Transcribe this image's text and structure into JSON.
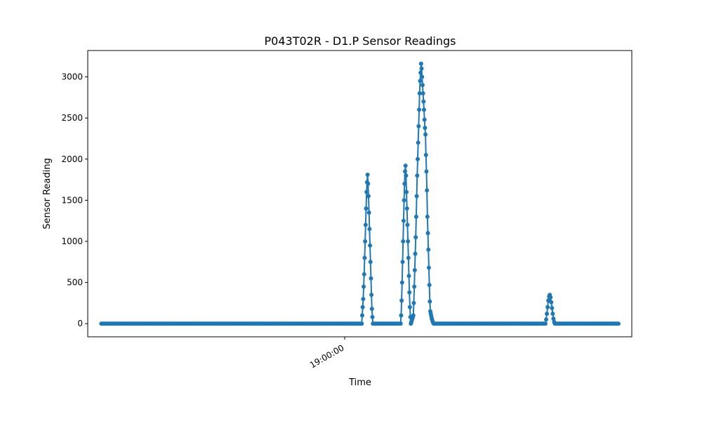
{
  "chart_data": {
    "type": "line",
    "title": "P043T02R - D1.P Sensor Readings",
    "xlabel": "Time",
    "ylabel": "Sensor Reading",
    "x_ticks": [
      {
        "label": "19:00:00",
        "minute": 0
      }
    ],
    "y_ticks": [
      0,
      500,
      1000,
      1500,
      2000,
      2500,
      3000
    ],
    "xlim_minutes": [
      -10.56,
      11.8
    ],
    "ylim": [
      -160,
      3320
    ],
    "grid": false,
    "legend": false,
    "marker": "circle",
    "series_color": "#1f77b4",
    "points": [
      [
        -10.0,
        0
      ],
      [
        0.7,
        0
      ],
      [
        0.72,
        100
      ],
      [
        0.74,
        200
      ],
      [
        0.76,
        300
      ],
      [
        0.78,
        450
      ],
      [
        0.8,
        600
      ],
      [
        0.82,
        800
      ],
      [
        0.84,
        1000
      ],
      [
        0.86,
        1200
      ],
      [
        0.88,
        1400
      ],
      [
        0.9,
        1600
      ],
      [
        0.92,
        1720
      ],
      [
        0.94,
        1810
      ],
      [
        0.96,
        1700
      ],
      [
        0.98,
        1550
      ],
      [
        1.0,
        1350
      ],
      [
        1.02,
        1150
      ],
      [
        1.04,
        950
      ],
      [
        1.06,
        750
      ],
      [
        1.08,
        550
      ],
      [
        1.1,
        350
      ],
      [
        1.12,
        180
      ],
      [
        1.14,
        80
      ],
      [
        1.16,
        0
      ],
      [
        2.3,
        0
      ],
      [
        2.32,
        100
      ],
      [
        2.34,
        280
      ],
      [
        2.36,
        500
      ],
      [
        2.38,
        750
      ],
      [
        2.4,
        1000
      ],
      [
        2.42,
        1250
      ],
      [
        2.44,
        1500
      ],
      [
        2.46,
        1700
      ],
      [
        2.48,
        1850
      ],
      [
        2.5,
        1920
      ],
      [
        2.52,
        1800
      ],
      [
        2.54,
        1600
      ],
      [
        2.56,
        1400
      ],
      [
        2.58,
        1200
      ],
      [
        2.6,
        1000
      ],
      [
        2.62,
        800
      ],
      [
        2.64,
        580
      ],
      [
        2.66,
        380
      ],
      [
        2.68,
        200
      ],
      [
        2.7,
        80
      ],
      [
        2.72,
        0
      ],
      [
        2.74,
        20
      ],
      [
        2.76,
        40
      ],
      [
        2.78,
        60
      ],
      [
        2.8,
        80
      ],
      [
        2.82,
        100
      ],
      [
        2.84,
        250
      ],
      [
        2.86,
        450
      ],
      [
        2.88,
        650
      ],
      [
        2.9,
        850
      ],
      [
        2.92,
        1050
      ],
      [
        2.94,
        1300
      ],
      [
        2.96,
        1550
      ],
      [
        2.98,
        1800
      ],
      [
        3.0,
        2000
      ],
      [
        3.02,
        2200
      ],
      [
        3.04,
        2400
      ],
      [
        3.06,
        2600
      ],
      [
        3.08,
        2800
      ],
      [
        3.1,
        2950
      ],
      [
        3.12,
        3050
      ],
      [
        3.14,
        3160
      ],
      [
        3.16,
        3100
      ],
      [
        3.18,
        3000
      ],
      [
        3.2,
        2900
      ],
      [
        3.22,
        2800
      ],
      [
        3.24,
        2700
      ],
      [
        3.26,
        2600
      ],
      [
        3.28,
        2480
      ],
      [
        3.3,
        2380
      ],
      [
        3.32,
        2300
      ],
      [
        3.34,
        2050
      ],
      [
        3.36,
        1850
      ],
      [
        3.38,
        1620
      ],
      [
        3.4,
        1300
      ],
      [
        3.42,
        1100
      ],
      [
        3.44,
        900
      ],
      [
        3.46,
        680
      ],
      [
        3.48,
        470
      ],
      [
        3.5,
        270
      ],
      [
        3.52,
        150
      ],
      [
        3.54,
        120
      ],
      [
        3.56,
        90
      ],
      [
        3.58,
        60
      ],
      [
        3.6,
        40
      ],
      [
        3.62,
        20
      ],
      [
        3.64,
        10
      ],
      [
        3.66,
        0
      ],
      [
        8.25,
        0
      ],
      [
        8.28,
        50
      ],
      [
        8.31,
        120
      ],
      [
        8.34,
        200
      ],
      [
        8.37,
        280
      ],
      [
        8.4,
        330
      ],
      [
        8.43,
        350
      ],
      [
        8.46,
        320
      ],
      [
        8.49,
        260
      ],
      [
        8.52,
        190
      ],
      [
        8.55,
        120
      ],
      [
        8.58,
        60
      ],
      [
        8.61,
        20
      ],
      [
        8.64,
        0
      ],
      [
        11.25,
        0
      ]
    ]
  }
}
